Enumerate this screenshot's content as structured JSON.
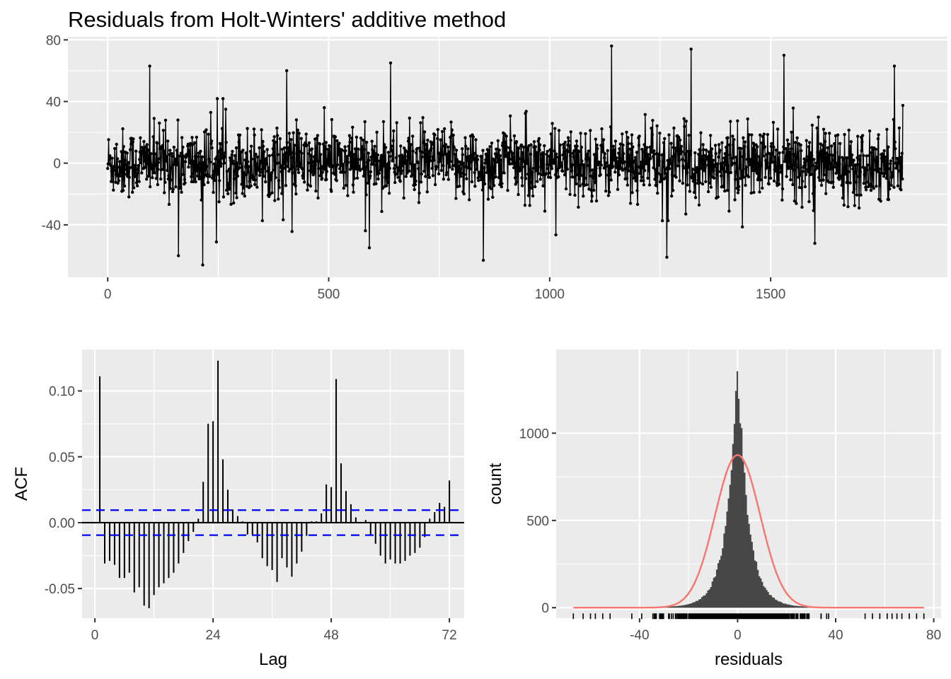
{
  "title": "Residuals from Holt-Winters' additive method",
  "chart_data": [
    {
      "type": "line",
      "description_role": "residual time series",
      "n_points": 1800,
      "xlim": [
        -90,
        1900
      ],
      "ylim": [
        -74,
        82
      ],
      "x_ticks": [
        0,
        500,
        1000,
        1500
      ],
      "x_tick_labels": [
        "0",
        "500",
        "1000",
        "1500"
      ],
      "y_ticks": [
        -40,
        0,
        40,
        80
      ],
      "y_tick_labels": [
        "-40",
        "0",
        "40",
        "80"
      ],
      "xlabel": "",
      "ylabel": "",
      "residual_sd": 11,
      "notable_points": [
        {
          "x": 95,
          "y": 63
        },
        {
          "x": 215,
          "y": -66
        },
        {
          "x": 160,
          "y": -60
        },
        {
          "x": 405,
          "y": 60
        },
        {
          "x": 640,
          "y": 65
        },
        {
          "x": 850,
          "y": -63
        },
        {
          "x": 1140,
          "y": 76
        },
        {
          "x": 1265,
          "y": -61
        },
        {
          "x": 1320,
          "y": 74
        },
        {
          "x": 1530,
          "y": 70
        },
        {
          "x": 1600,
          "y": -52
        },
        {
          "x": 1780,
          "y": 63
        }
      ],
      "colors": {
        "line": "#000000",
        "panel": "#ebebeb",
        "grid": "#ffffff"
      }
    },
    {
      "type": "bar",
      "description_role": "autocorrelation function",
      "lags": [
        1,
        2,
        3,
        4,
        5,
        6,
        7,
        8,
        9,
        10,
        11,
        12,
        13,
        14,
        15,
        16,
        17,
        18,
        19,
        20,
        21,
        22,
        23,
        24,
        25,
        26,
        27,
        28,
        29,
        30,
        31,
        32,
        33,
        34,
        35,
        36,
        37,
        38,
        39,
        40,
        41,
        42,
        43,
        44,
        45,
        46,
        47,
        48,
        49,
        50,
        51,
        52,
        53,
        54,
        55,
        56,
        57,
        58,
        59,
        60,
        61,
        62,
        63,
        64,
        65,
        66,
        67,
        68,
        69,
        70,
        71,
        72
      ],
      "acf": [
        0.111,
        -0.031,
        -0.029,
        -0.032,
        -0.042,
        -0.042,
        -0.038,
        -0.053,
        -0.049,
        -0.063,
        -0.065,
        -0.055,
        -0.049,
        -0.046,
        -0.042,
        -0.038,
        -0.031,
        -0.023,
        -0.014,
        -0.007,
        0.003,
        0.031,
        0.075,
        0.077,
        0.123,
        0.048,
        0.025,
        0.01,
        0.005,
        0.001,
        -0.009,
        -0.009,
        -0.015,
        -0.027,
        -0.033,
        -0.036,
        -0.045,
        -0.027,
        -0.034,
        -0.041,
        -0.031,
        -0.022,
        -0.01,
        0.001,
        0.001,
        0.007,
        0.029,
        0.027,
        0.109,
        0.045,
        0.024,
        0.014,
        0.004,
        0.0,
        0.002,
        -0.009,
        -0.016,
        -0.025,
        -0.031,
        -0.028,
        -0.031,
        -0.031,
        -0.029,
        -0.025,
        -0.023,
        -0.019,
        -0.011,
        0.003,
        0.008,
        0.015,
        0.012,
        0.032
      ],
      "conf_limit": 0.0095,
      "xlim": [
        -2.6,
        75
      ],
      "ylim": [
        -0.0725,
        0.1315
      ],
      "x_ticks": [
        0,
        24,
        48,
        72
      ],
      "x_tick_labels": [
        "0",
        "24",
        "48",
        "72"
      ],
      "y_ticks": [
        -0.05,
        0,
        0.05,
        0.1
      ],
      "y_tick_labels": [
        "-0.05",
        "0.00",
        "0.05",
        "0.10"
      ],
      "xlabel": "Lag",
      "ylabel": "ACF",
      "colors": {
        "bar": "#000000",
        "conf": "#0000ff"
      }
    },
    {
      "type": "histogram",
      "description_role": "residual distribution with normal curve and rug",
      "bin_width": 0.6,
      "peak_count": 1400,
      "center": 0,
      "normal_curve": {
        "mean": 0,
        "sd": 9.2,
        "peak": 875
      },
      "rug_range": [
        -67,
        76
      ],
      "xlim": [
        -74,
        83
      ],
      "ylim": [
        -60,
        1480
      ],
      "x_ticks": [
        -40,
        0,
        40,
        80
      ],
      "x_tick_labels": [
        "-40",
        "0",
        "40",
        "80"
      ],
      "y_ticks": [
        0,
        500,
        1000
      ],
      "y_tick_labels": [
        "0",
        "500",
        "1000"
      ],
      "xlabel": "residuals",
      "ylabel": "count",
      "colors": {
        "bars": "#474747",
        "curve": "#f8766d",
        "rug": "#000000"
      }
    }
  ]
}
